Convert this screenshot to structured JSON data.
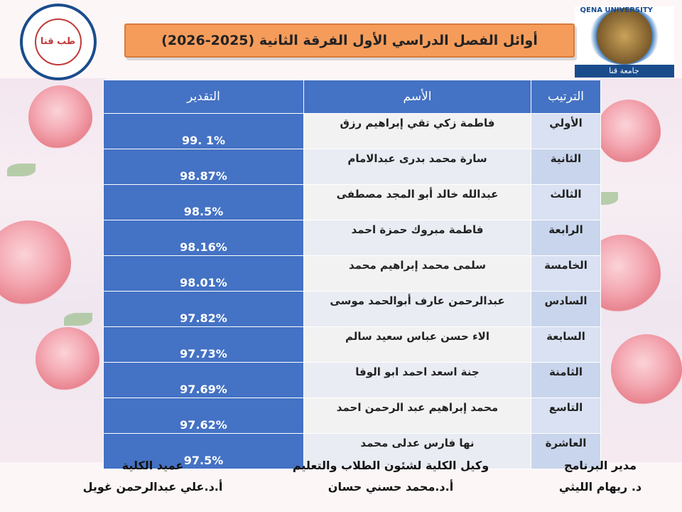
{
  "title": "أوائل الفصل الدراسي الأول الفرقة الثانية (2025-2026)",
  "logos": {
    "left_text": "طب قنا",
    "right_bar": "جامعة قنا",
    "right_arc": "QENA UNIVERSITY"
  },
  "table": {
    "headers": {
      "rank": "الترتيب",
      "name": "الأسم",
      "grade": "التقدير"
    },
    "rows": [
      {
        "rank": "الأولي",
        "name": "فاطمة زكي تقي إبراهيم رزق",
        "grade": "99. 1%"
      },
      {
        "rank": "الثانية",
        "name": "سارة محمد بدرى عبدالامام",
        "grade": "98.87%"
      },
      {
        "rank": "الثالث",
        "name": "عبدالله خالد أبو المجد مصطفى",
        "grade": "98.5%"
      },
      {
        "rank": "الرابعة",
        "name": "فاطمة مبروك حمزة احمد",
        "grade": "98.16%"
      },
      {
        "rank": "الخامسة",
        "name": "سلمى محمد إبراهيم محمد",
        "grade": "98.01%"
      },
      {
        "rank": "السادس",
        "name": "عبدالرحمن عارف أبوالحمد موسى",
        "grade": "97.82%"
      },
      {
        "rank": "السابعة",
        "name": "الاء حسن عباس سعيد سالم",
        "grade": "97.73%"
      },
      {
        "rank": "الثامنة",
        "name": "جنة اسعد احمد ابو الوفا",
        "grade": "97.69%"
      },
      {
        "rank": "التاسع",
        "name": "محمد إبراهيم عبد الرحمن احمد",
        "grade": "97.62%"
      },
      {
        "rank": "العاشرة",
        "name": "نها فارس عدلى محمد",
        "grade": "97.5%"
      }
    ]
  },
  "signatures": {
    "program_director": {
      "role": "مدير البرنامج",
      "name": "د. ريهام الليثي"
    },
    "vice_dean": {
      "role": "وكيل الكلية لشئون الطلاب والتعليم",
      "name": "أ.د.محمد حسني حسان"
    },
    "dean": {
      "role": "عميد الكلية",
      "name": "أ.د.علي عبدالرحمن غويل"
    }
  }
}
